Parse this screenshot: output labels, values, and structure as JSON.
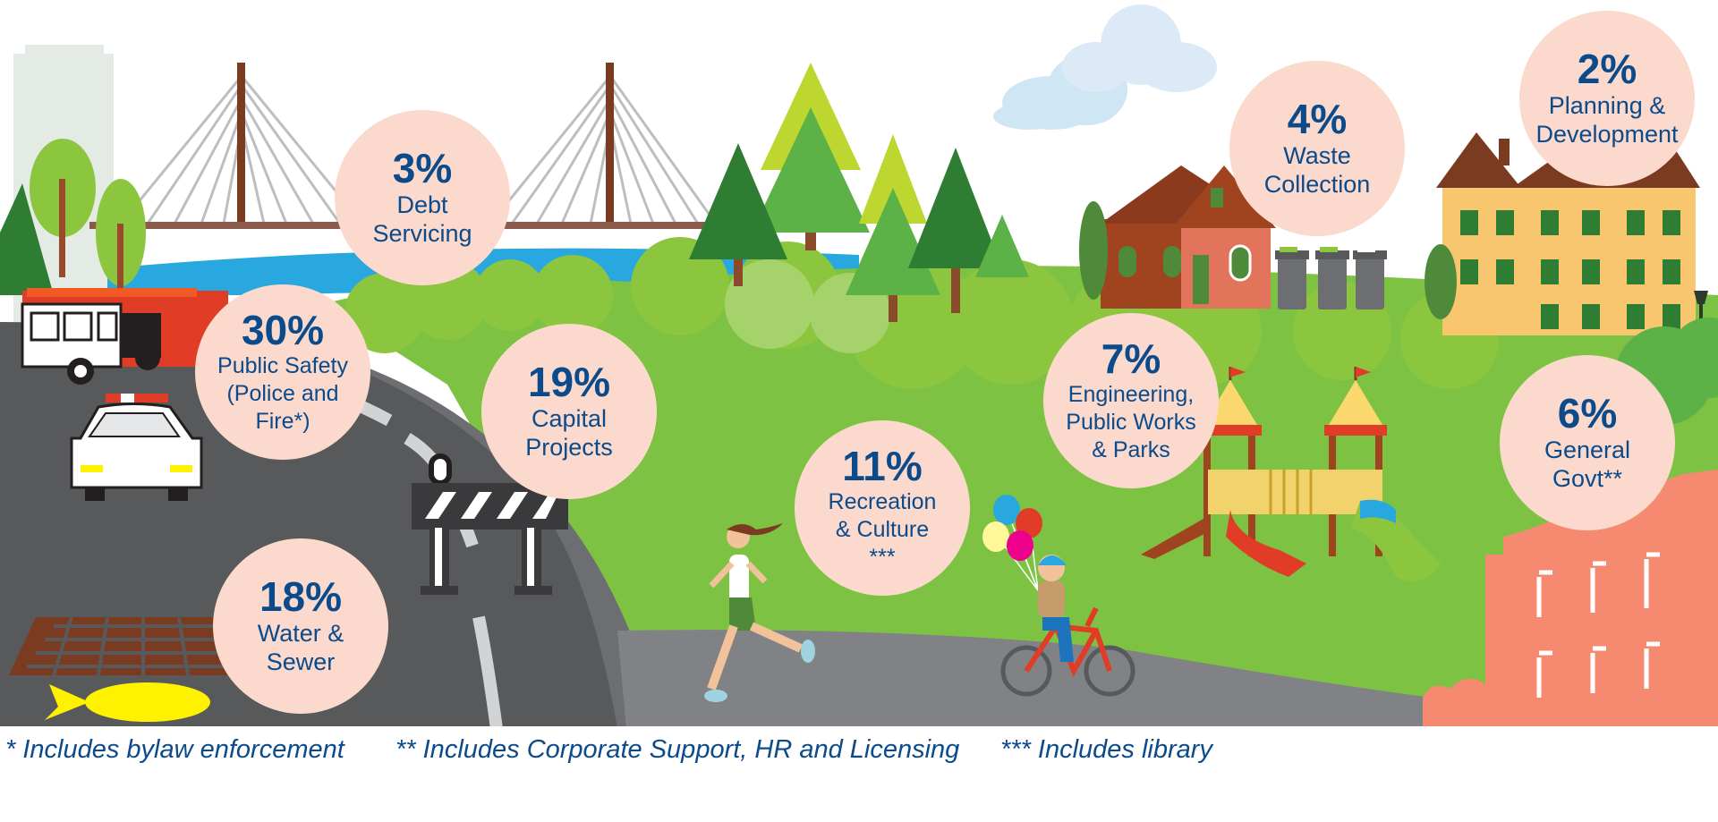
{
  "categories": [
    {
      "id": "debt",
      "percent": "3%",
      "lines": [
        "Debt",
        "Servicing"
      ]
    },
    {
      "id": "public-safety",
      "percent": "30%",
      "lines": [
        "Public Safety",
        "(Police and",
        "Fire*)"
      ]
    },
    {
      "id": "capital",
      "percent": "19%",
      "lines": [
        "Capital",
        "Projects"
      ]
    },
    {
      "id": "water",
      "percent": "18%",
      "lines": [
        "Water &",
        "Sewer"
      ]
    },
    {
      "id": "recreation",
      "percent": "11%",
      "lines": [
        "Recreation",
        "& Culture",
        "***"
      ]
    },
    {
      "id": "engineering",
      "percent": "7%",
      "lines": [
        "Engineering,",
        "Public Works",
        "& Parks"
      ]
    },
    {
      "id": "waste",
      "percent": "4%",
      "lines": [
        "Waste",
        "Collection"
      ]
    },
    {
      "id": "planning",
      "percent": "2%",
      "lines": [
        "Planning &",
        "Development"
      ]
    },
    {
      "id": "general",
      "percent": "6%",
      "lines": [
        "General",
        "Govt**"
      ]
    }
  ],
  "footnotes": [
    "*  Includes bylaw enforcement",
    "** Includes Corporate Support, HR and Licensing",
    "*** Includes library"
  ],
  "colors": {
    "bubble": "#fbd9cc",
    "text": "#0b4a8b",
    "grass": "#7dc242",
    "road": "#58595b",
    "water": "#29a8e0",
    "sky_building": "#e3ebe4"
  },
  "icons": [
    "bridge-icon",
    "fire-truck-icon",
    "police-car-icon",
    "road-barrier-icon",
    "storm-drain-icon",
    "fish-icon",
    "runner-icon",
    "cyclist-icon",
    "balloons-icon",
    "playground-icon",
    "house-icon",
    "garbage-bins-icon",
    "apartment-building-icon",
    "city-hall-icon",
    "cloud-icon",
    "tree-icon",
    "street-lamp-icon"
  ]
}
